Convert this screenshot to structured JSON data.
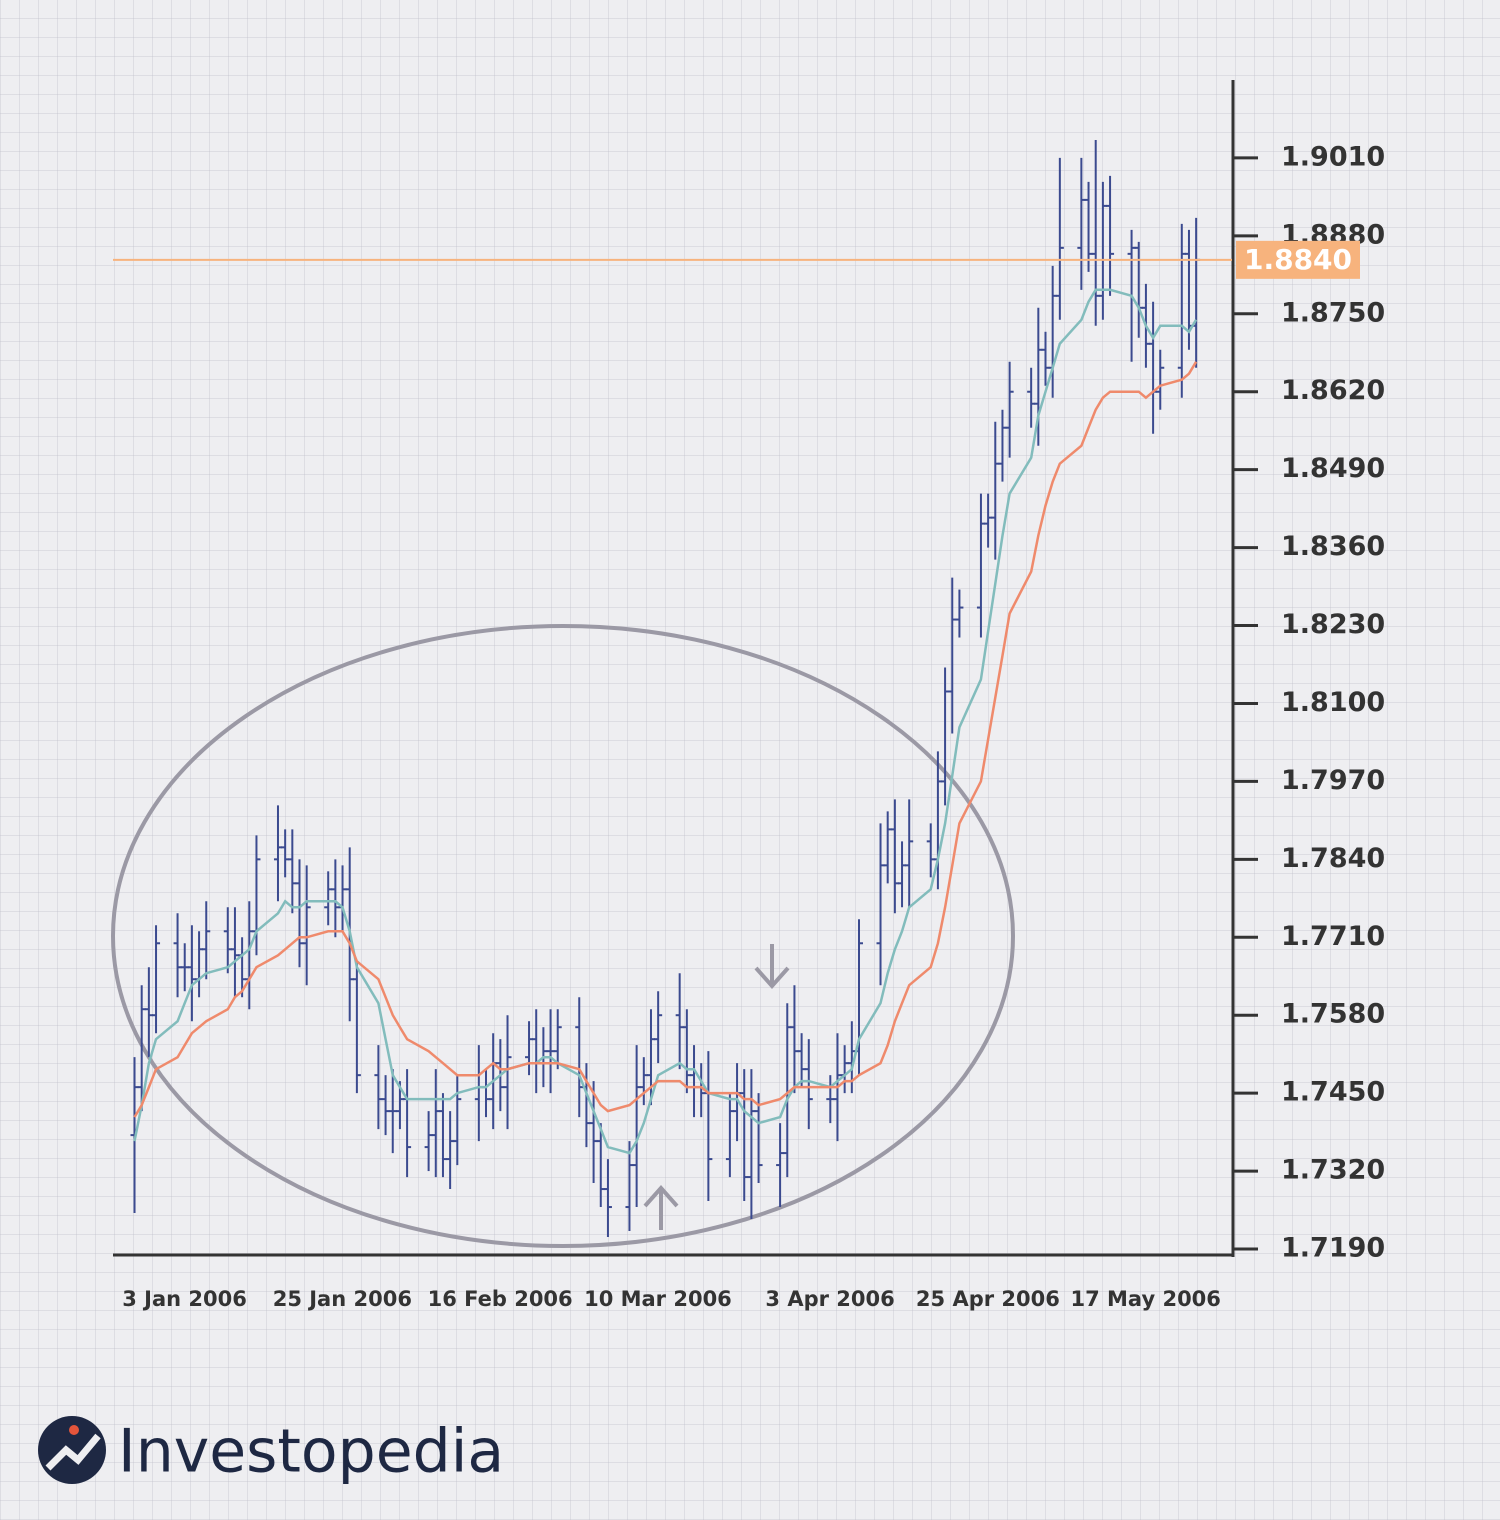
{
  "chart_data": {
    "type": "ohlc",
    "x": [
      "2006-01-03",
      "2006-01-04",
      "2006-01-05",
      "2006-01-06",
      "2006-01-09",
      "2006-01-10",
      "2006-01-11",
      "2006-01-12",
      "2006-01-13",
      "2006-01-16",
      "2006-01-17",
      "2006-01-18",
      "2006-01-19",
      "2006-01-20",
      "2006-01-23",
      "2006-01-24",
      "2006-01-25",
      "2006-01-26",
      "2006-01-27",
      "2006-01-30",
      "2006-01-31",
      "2006-02-01",
      "2006-02-02",
      "2006-02-03",
      "2006-02-06",
      "2006-02-07",
      "2006-02-08",
      "2006-02-09",
      "2006-02-10",
      "2006-02-13",
      "2006-02-14",
      "2006-02-15",
      "2006-02-16",
      "2006-02-17",
      "2006-02-20",
      "2006-02-21",
      "2006-02-22",
      "2006-02-23",
      "2006-02-24",
      "2006-02-27",
      "2006-02-28",
      "2006-03-01",
      "2006-03-02",
      "2006-03-03",
      "2006-03-06",
      "2006-03-07",
      "2006-03-08",
      "2006-03-09",
      "2006-03-10",
      "2006-03-13",
      "2006-03-14",
      "2006-03-15",
      "2006-03-16",
      "2006-03-17",
      "2006-03-20",
      "2006-03-21",
      "2006-03-22",
      "2006-03-23",
      "2006-03-24",
      "2006-03-27",
      "2006-03-28",
      "2006-03-29",
      "2006-03-30",
      "2006-03-31",
      "2006-04-03",
      "2006-04-04",
      "2006-04-05",
      "2006-04-06",
      "2006-04-07",
      "2006-04-10",
      "2006-04-11",
      "2006-04-12",
      "2006-04-13",
      "2006-04-14",
      "2006-04-17",
      "2006-04-18",
      "2006-04-19",
      "2006-04-20",
      "2006-04-21",
      "2006-04-24",
      "2006-04-25",
      "2006-04-26",
      "2006-04-27",
      "2006-04-28",
      "2006-05-01",
      "2006-05-02",
      "2006-05-03",
      "2006-05-04",
      "2006-05-05",
      "2006-05-08",
      "2006-05-09",
      "2006-05-10",
      "2006-05-11",
      "2006-05-12",
      "2006-05-15",
      "2006-05-16",
      "2006-05-17",
      "2006-05-18",
      "2006-05-19",
      "2006-05-22",
      "2006-05-23",
      "2006-05-24",
      "2006-05-25",
      "2006-05-26",
      "2006-05-29",
      "2006-05-30",
      "2006-05-31"
    ],
    "open": [
      1.738,
      1.746,
      1.759,
      1.758,
      1.77,
      1.766,
      1.766,
      1.764,
      1.769,
      1.772,
      1.769,
      1.768,
      1.764,
      1.772,
      1.784,
      1.786,
      1.784,
      1.78,
      1.77,
      1.776,
      1.779,
      1.776,
      1.779,
      1.764,
      1.748,
      1.744,
      1.742,
      1.742,
      1.744,
      1.736,
      1.738,
      1.742,
      1.734,
      1.737,
      1.744,
      1.746,
      1.744,
      1.75,
      1.746,
      1.751,
      1.754,
      1.75,
      1.752,
      1.752,
      1.756,
      1.746,
      1.74,
      1.737,
      1.729,
      1.726,
      1.733,
      1.746,
      1.748,
      1.754,
      1.758,
      1.756,
      1.748,
      1.746,
      1.745,
      1.734,
      1.742,
      1.745,
      1.731,
      1.742,
      1.733,
      1.735,
      1.756,
      1.752,
      1.749,
      1.744,
      1.744,
      1.748,
      1.75,
      1.752,
      1.77,
      1.783,
      1.789,
      1.78,
      1.783,
      1.787,
      1.784,
      1.797,
      1.812,
      1.824,
      1.826,
      1.84,
      1.841,
      1.85,
      1.856,
      1.862,
      1.86,
      1.869,
      1.866,
      1.878,
      1.886,
      1.894,
      1.885,
      1.878,
      1.893,
      1.885,
      1.886,
      1.876,
      1.87,
      1.862,
      1.866,
      1.885,
      1.873
    ],
    "high": [
      1.751,
      1.763,
      1.766,
      1.773,
      1.775,
      1.77,
      1.773,
      1.772,
      1.777,
      1.776,
      1.776,
      1.771,
      1.777,
      1.788,
      1.793,
      1.789,
      1.789,
      1.784,
      1.783,
      1.782,
      1.784,
      1.783,
      1.786,
      1.767,
      1.753,
      1.748,
      1.749,
      1.747,
      1.749,
      1.742,
      1.749,
      1.745,
      1.742,
      1.748,
      1.753,
      1.749,
      1.755,
      1.754,
      1.758,
      1.757,
      1.759,
      1.756,
      1.759,
      1.759,
      1.761,
      1.75,
      1.747,
      1.74,
      1.734,
      1.737,
      1.753,
      1.751,
      1.759,
      1.762,
      1.765,
      1.759,
      1.753,
      1.75,
      1.752,
      1.745,
      1.75,
      1.749,
      1.749,
      1.745,
      1.74,
      1.76,
      1.763,
      1.755,
      1.754,
      1.748,
      1.755,
      1.753,
      1.757,
      1.774,
      1.79,
      1.792,
      1.794,
      1.787,
      1.794,
      1.79,
      1.802,
      1.816,
      1.831,
      1.829,
      1.845,
      1.845,
      1.857,
      1.859,
      1.867,
      1.866,
      1.876,
      1.872,
      1.883,
      1.901,
      1.901,
      1.897,
      1.904,
      1.897,
      1.898,
      1.889,
      1.887,
      1.88,
      1.877,
      1.869,
      1.89,
      1.889,
      1.891
    ],
    "low": [
      1.725,
      1.742,
      1.751,
      1.755,
      1.761,
      1.762,
      1.757,
      1.761,
      1.764,
      1.765,
      1.761,
      1.761,
      1.759,
      1.768,
      1.777,
      1.781,
      1.775,
      1.766,
      1.763,
      1.773,
      1.771,
      1.772,
      1.757,
      1.745,
      1.739,
      1.738,
      1.735,
      1.739,
      1.731,
      1.732,
      1.731,
      1.731,
      1.729,
      1.733,
      1.737,
      1.741,
      1.739,
      1.742,
      1.739,
      1.748,
      1.745,
      1.746,
      1.745,
      1.749,
      1.741,
      1.736,
      1.73,
      1.726,
      1.721,
      1.722,
      1.726,
      1.743,
      1.743,
      1.75,
      1.749,
      1.745,
      1.741,
      1.741,
      1.727,
      1.731,
      1.737,
      1.727,
      1.724,
      1.73,
      1.726,
      1.731,
      1.745,
      1.746,
      1.739,
      1.74,
      1.737,
      1.745,
      1.745,
      1.748,
      1.763,
      1.78,
      1.775,
      1.776,
      1.776,
      1.781,
      1.779,
      1.793,
      1.805,
      1.821,
      1.821,
      1.836,
      1.834,
      1.847,
      1.851,
      1.856,
      1.853,
      1.863,
      1.861,
      1.874,
      1.879,
      1.882,
      1.873,
      1.874,
      1.878,
      1.867,
      1.871,
      1.866,
      1.855,
      1.859,
      1.861,
      1.869,
      1.866
    ],
    "close": [
      1.746,
      1.759,
      1.758,
      1.77,
      1.766,
      1.766,
      1.764,
      1.769,
      1.772,
      1.769,
      1.768,
      1.764,
      1.772,
      1.784,
      1.786,
      1.784,
      1.78,
      1.77,
      1.776,
      1.779,
      1.776,
      1.779,
      1.764,
      1.748,
      1.744,
      1.742,
      1.742,
      1.744,
      1.736,
      1.738,
      1.742,
      1.734,
      1.737,
      1.744,
      1.746,
      1.744,
      1.75,
      1.746,
      1.751,
      1.754,
      1.75,
      1.752,
      1.752,
      1.756,
      1.746,
      1.74,
      1.737,
      1.729,
      1.726,
      1.733,
      1.746,
      1.748,
      1.754,
      1.758,
      1.756,
      1.748,
      1.746,
      1.745,
      1.734,
      1.742,
      1.745,
      1.731,
      1.742,
      1.733,
      1.735,
      1.756,
      1.752,
      1.749,
      1.744,
      1.744,
      1.748,
      1.75,
      1.752,
      1.77,
      1.783,
      1.789,
      1.78,
      1.783,
      1.787,
      1.784,
      1.797,
      1.812,
      1.824,
      1.826,
      1.84,
      1.841,
      1.85,
      1.856,
      1.862,
      1.86,
      1.869,
      1.866,
      1.878,
      1.886,
      1.894,
      1.885,
      1.878,
      1.893,
      1.885,
      1.886,
      1.876,
      1.87,
      1.862,
      1.866,
      1.885,
      1.873,
      1.884
    ],
    "color": "#3b4a8f",
    "lines": [
      {
        "color": "#82bcbc",
        "values": [
          1.737,
          1.743,
          1.75,
          1.754,
          1.757,
          1.76,
          1.763,
          1.764,
          1.765,
          1.766,
          1.767,
          1.768,
          1.769,
          1.772,
          1.775,
          1.777,
          1.776,
          1.776,
          1.777,
          1.777,
          1.777,
          1.776,
          1.772,
          1.766,
          1.76,
          1.754,
          1.748,
          1.746,
          1.744,
          1.744,
          1.744,
          1.744,
          1.744,
          1.745,
          1.746,
          1.746,
          1.747,
          1.748,
          1.749,
          1.75,
          1.75,
          1.751,
          1.751,
          1.75,
          1.748,
          1.745,
          1.742,
          1.739,
          1.736,
          1.735,
          1.737,
          1.74,
          1.744,
          1.748,
          1.75,
          1.749,
          1.749,
          1.747,
          1.745,
          1.744,
          1.744,
          1.742,
          1.741,
          1.74,
          1.741,
          1.744,
          1.746,
          1.747,
          1.747,
          1.746,
          1.747,
          1.748,
          1.749,
          1.754,
          1.76,
          1.765,
          1.769,
          1.772,
          1.776,
          1.779,
          1.784,
          1.79,
          1.798,
          1.806,
          1.814,
          1.822,
          1.83,
          1.838,
          1.845,
          1.851,
          1.858,
          1.862,
          1.866,
          1.87,
          1.874,
          1.877,
          1.879,
          1.879,
          1.879,
          1.878,
          1.876,
          1.873,
          1.871,
          1.873,
          1.873,
          1.872,
          1.874
        ]
      },
      {
        "color": "#ef8a6c",
        "values": [
          1.741,
          1.743,
          1.746,
          1.749,
          1.751,
          1.753,
          1.755,
          1.756,
          1.757,
          1.759,
          1.761,
          1.762,
          1.764,
          1.766,
          1.768,
          1.769,
          1.77,
          1.771,
          1.771,
          1.772,
          1.772,
          1.772,
          1.77,
          1.767,
          1.764,
          1.761,
          1.758,
          1.756,
          1.754,
          1.752,
          1.751,
          1.75,
          1.749,
          1.748,
          1.748,
          1.749,
          1.75,
          1.749,
          1.749,
          1.75,
          1.75,
          1.75,
          1.75,
          1.75,
          1.749,
          1.747,
          1.745,
          1.743,
          1.742,
          1.743,
          1.744,
          1.745,
          1.746,
          1.747,
          1.747,
          1.746,
          1.746,
          1.746,
          1.745,
          1.745,
          1.745,
          1.744,
          1.744,
          1.743,
          1.744,
          1.745,
          1.746,
          1.746,
          1.746,
          1.746,
          1.746,
          1.747,
          1.747,
          1.748,
          1.75,
          1.753,
          1.757,
          1.76,
          1.763,
          1.766,
          1.77,
          1.776,
          1.783,
          1.79,
          1.797,
          1.804,
          1.811,
          1.818,
          1.825,
          1.832,
          1.838,
          1.843,
          1.847,
          1.85,
          1.853,
          1.856,
          1.859,
          1.861,
          1.862,
          1.862,
          1.862,
          1.861,
          1.862,
          1.863,
          1.864,
          1.865,
          1.867
        ]
      }
    ],
    "price_line": {
      "value": 1.884,
      "label": "1.8840",
      "color": "#f7b37d"
    },
    "xlim": [
      "2005-12-31",
      "2006-06-05"
    ],
    "xticks": [
      {
        "value": "2006-01-03",
        "label": "3 Jan 2006"
      },
      {
        "value": "2006-01-25",
        "label": "25 Jan 2006"
      },
      {
        "value": "2006-02-16",
        "label": "16 Feb 2006"
      },
      {
        "value": "2006-03-10",
        "label": "10 Mar 2006"
      },
      {
        "value": "2006-04-03",
        "label": "3 Apr 2006"
      },
      {
        "value": "2006-04-25",
        "label": "25 Apr 2006"
      },
      {
        "value": "2006-05-17",
        "label": "17 May 2006"
      }
    ],
    "ylim": [
      1.718,
      1.914
    ],
    "yticks": [
      {
        "value": 1.719,
        "label": "1.7190"
      },
      {
        "value": 1.732,
        "label": "1.7320"
      },
      {
        "value": 1.745,
        "label": "1.7450"
      },
      {
        "value": 1.758,
        "label": "1.7580"
      },
      {
        "value": 1.771,
        "label": "1.7710"
      },
      {
        "value": 1.784,
        "label": "1.7840"
      },
      {
        "value": 1.797,
        "label": "1.7970"
      },
      {
        "value": 1.81,
        "label": "1.8100"
      },
      {
        "value": 1.823,
        "label": "1.8230"
      },
      {
        "value": 1.836,
        "label": "1.8360"
      },
      {
        "value": 1.849,
        "label": "1.8490"
      },
      {
        "value": 1.862,
        "label": "1.8620"
      },
      {
        "value": 1.875,
        "label": "1.8750"
      },
      {
        "value": 1.888,
        "label": "1.8880"
      },
      {
        "value": 1.901,
        "label": "1.9010"
      }
    ]
  },
  "brand": "Investopedia"
}
